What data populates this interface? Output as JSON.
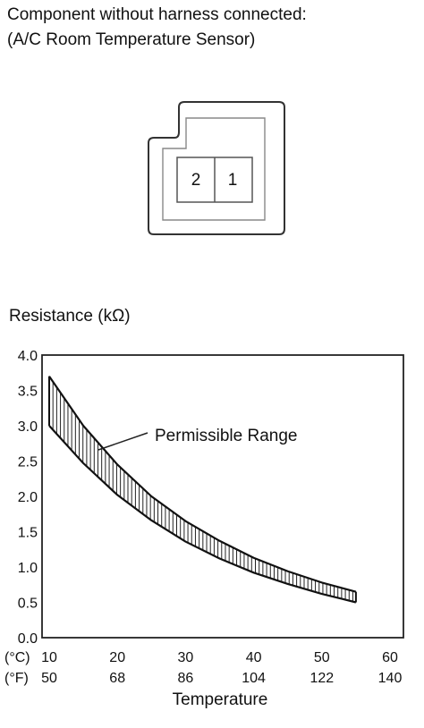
{
  "header": {
    "line1": "Component without harness connected:",
    "line2": "(A/C Room Temperature Sensor)"
  },
  "connector": {
    "pins": [
      "2",
      "1"
    ]
  },
  "chart_data": {
    "type": "area",
    "ylabel": "Resistance (kΩ)",
    "xlabel": "Temperature",
    "band_label": "Permissible Range",
    "xlim": [
      10,
      60
    ],
    "ylim": [
      0.0,
      4.0
    ],
    "y_ticks": [
      "4.0",
      "3.5",
      "3.0",
      "2.5",
      "2.0",
      "1.5",
      "1.0",
      "0.5",
      "0.0"
    ],
    "x_ticks_c": [
      "10",
      "20",
      "30",
      "40",
      "50",
      "60"
    ],
    "x_ticks_f": [
      "50",
      "68",
      "86",
      "104",
      "122",
      "140"
    ],
    "unit_c": "(°C)",
    "unit_f": "(°F)",
    "series": [
      {
        "role": "upper",
        "x": [
          10,
          15,
          20,
          25,
          30,
          35,
          40,
          45,
          50,
          55
        ],
        "values": [
          3.7,
          3.0,
          2.45,
          2.0,
          1.65,
          1.37,
          1.13,
          0.94,
          0.78,
          0.65
        ]
      },
      {
        "role": "lower",
        "x": [
          10,
          15,
          20,
          25,
          30,
          35,
          40,
          45,
          50,
          55
        ],
        "values": [
          3.0,
          2.47,
          2.02,
          1.66,
          1.36,
          1.12,
          0.92,
          0.76,
          0.62,
          0.5
        ]
      }
    ],
    "grid": false
  }
}
